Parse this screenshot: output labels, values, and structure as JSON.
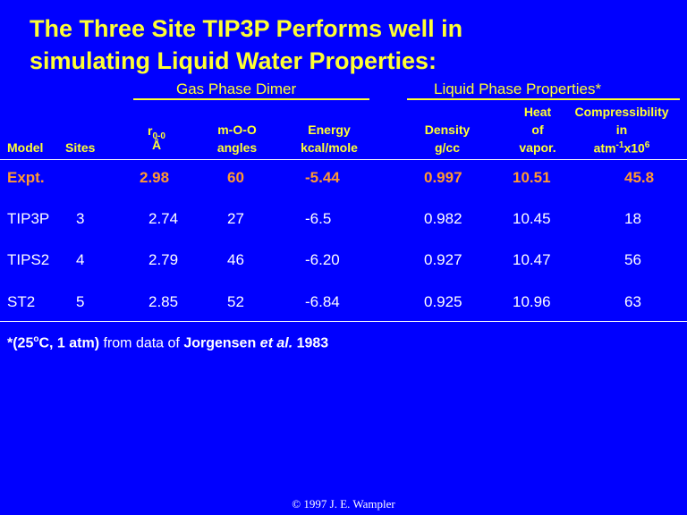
{
  "title_line1": "The Three Site TIP3P Performs well in",
  "title_line2": "simulating Liquid Water Properties:",
  "groups": {
    "gas": "Gas Phase Dimer",
    "liquid": "Liquid Phase Properties*"
  },
  "headers": {
    "model": "Model",
    "sites": "Sites",
    "r_main": "r",
    "r_sub": "0-0",
    "r_unit": "Å",
    "angle_l1": "m-O-O",
    "angle_l2": "angles",
    "energy_l1": "Energy",
    "energy_l2": "kcal/mole",
    "density_l1": "Density",
    "density_l2": "g/cc",
    "heat_l1": "Heat",
    "heat_l2": "of",
    "heat_l3": "vapor.",
    "comp_l1": "Compressibility",
    "comp_l2": "in",
    "comp_l3a": "atm",
    "comp_l3b": "-1",
    "comp_l3c": "x10",
    "comp_l3d": "6"
  },
  "rows": [
    {
      "model": "Expt.",
      "sites": "",
      "r": "2.98",
      "angle": "60",
      "energy": "-5.44",
      "density": "0.997",
      "heat": "10.51",
      "comp": "45.8"
    },
    {
      "model": "TIP3P",
      "sites": "3",
      "r": "2.74",
      "angle": "27",
      "energy": "-6.5",
      "density": "0.982",
      "heat": "10.45",
      "comp": "18"
    },
    {
      "model": "TIPS2",
      "sites": "4",
      "r": "2.79",
      "angle": "46",
      "energy": "-6.20",
      "density": "0.927",
      "heat": "10.47",
      "comp": "56"
    },
    {
      "model": "ST2",
      "sites": "5",
      "r": "2.85",
      "angle": "52",
      "energy": "-6.84",
      "density": "0.925",
      "heat": "10.96",
      "comp": "63"
    }
  ],
  "footnote": {
    "a": "*(25",
    "deg": "o",
    "b": "C, 1 atm)",
    "c": " from data of ",
    "d": "Jorgensen ",
    "e": "et al.",
    "f": " 1983"
  },
  "copyright": "© 1997 J. E. Wampler"
}
